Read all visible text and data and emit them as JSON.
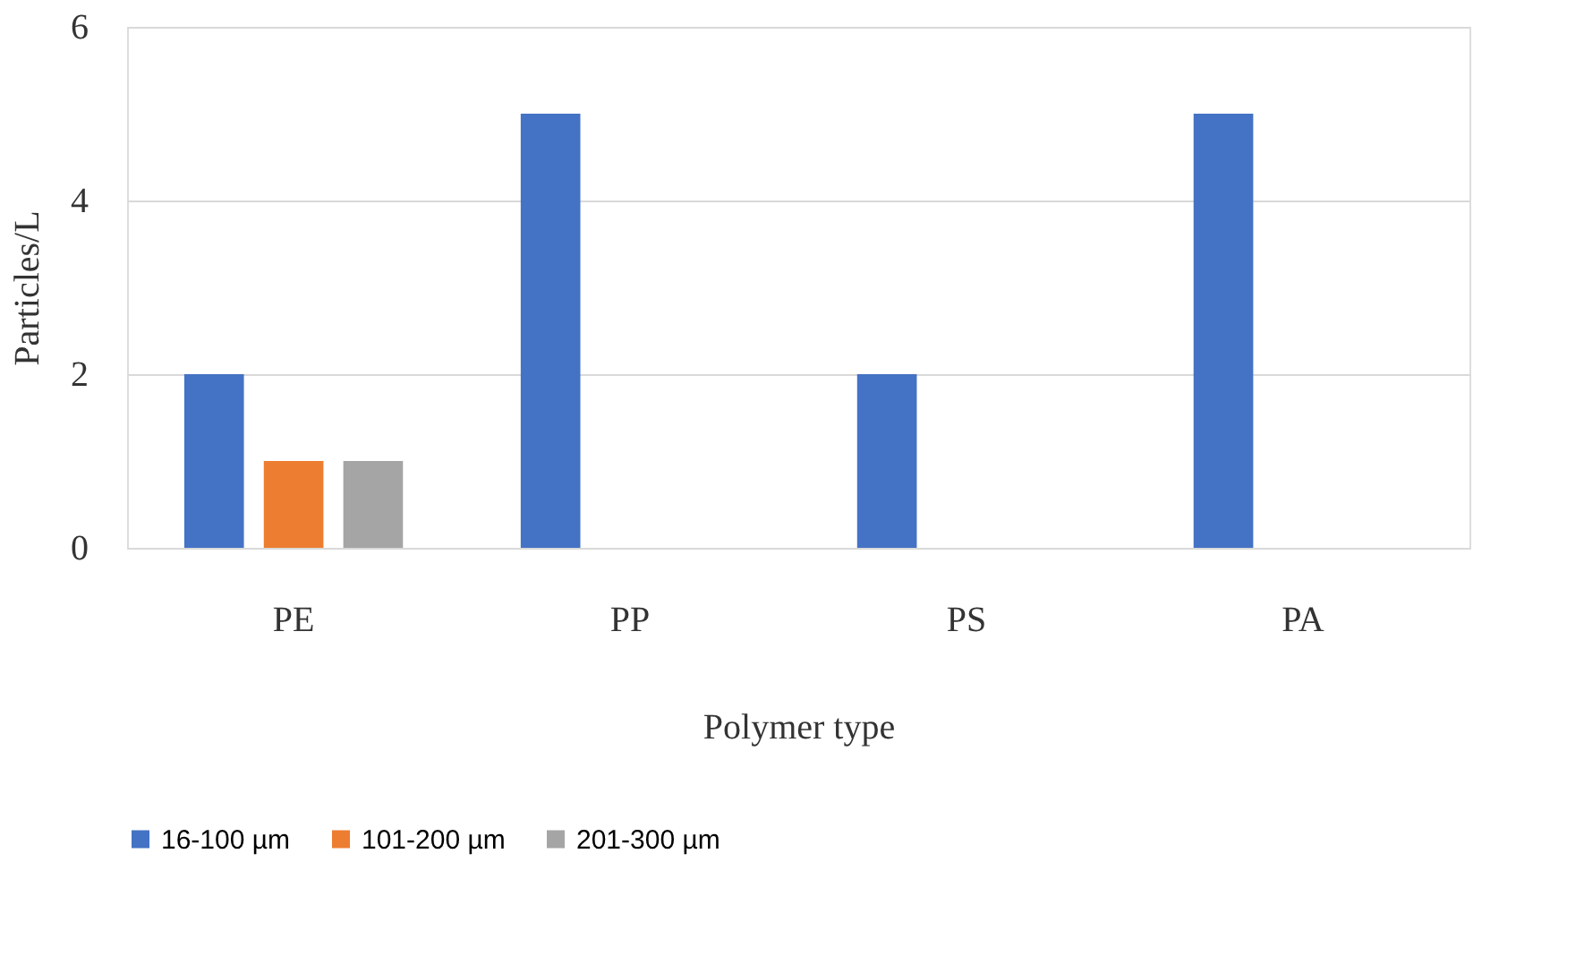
{
  "chart_data": {
    "type": "bar",
    "xlabel": "Polymer type",
    "ylabel": "Particles/L",
    "categories": [
      "PE",
      "PP",
      "PS",
      "PA"
    ],
    "series": [
      {
        "name": "16-100 µm",
        "color": "#4472c4",
        "values": [
          2,
          5,
          2,
          5
        ]
      },
      {
        "name": "101-200 µm",
        "color": "#ed7d31",
        "values": [
          1,
          0,
          0,
          0
        ]
      },
      {
        "name": "201-300 µm",
        "color": "#a5a5a5",
        "values": [
          1,
          0,
          0,
          0
        ]
      }
    ],
    "ylim": [
      0,
      6
    ],
    "yticks": [
      0,
      2,
      4,
      6
    ],
    "grid": "y",
    "legend": "bottom"
  }
}
